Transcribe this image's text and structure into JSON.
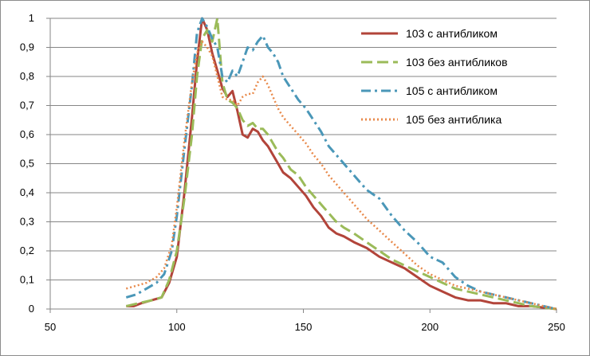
{
  "chart_data": {
    "type": "line",
    "xlim": [
      50,
      250
    ],
    "ylim": [
      0,
      1
    ],
    "x_ticks": [
      "50",
      "100",
      "150",
      "200",
      "250"
    ],
    "y_ticks": [
      "0",
      "0,1",
      "0,2",
      "0,3",
      "0,4",
      "0,5",
      "0,6",
      "0,7",
      "0,8",
      "0,9",
      "1"
    ],
    "grid": "horizontal",
    "legend_position": "top-right",
    "series": [
      {
        "name": "103 с антибликом",
        "color": "#b2443a",
        "dash": "solid",
        "points": [
          [
            80,
            0.01
          ],
          [
            83,
            0.01
          ],
          [
            86,
            0.02
          ],
          [
            90,
            0.03
          ],
          [
            94,
            0.04
          ],
          [
            97,
            0.09
          ],
          [
            100,
            0.18
          ],
          [
            103,
            0.4
          ],
          [
            106,
            0.66
          ],
          [
            108,
            0.85
          ],
          [
            110,
            1.0
          ],
          [
            112,
            0.96
          ],
          [
            114,
            0.88
          ],
          [
            116,
            0.82
          ],
          [
            118,
            0.76
          ],
          [
            120,
            0.73
          ],
          [
            122,
            0.75
          ],
          [
            124,
            0.68
          ],
          [
            126,
            0.6
          ],
          [
            128,
            0.59
          ],
          [
            130,
            0.62
          ],
          [
            132,
            0.61
          ],
          [
            134,
            0.58
          ],
          [
            136,
            0.56
          ],
          [
            138,
            0.53
          ],
          [
            140,
            0.5
          ],
          [
            142,
            0.47
          ],
          [
            145,
            0.45
          ],
          [
            148,
            0.42
          ],
          [
            151,
            0.39
          ],
          [
            154,
            0.35
          ],
          [
            157,
            0.32
          ],
          [
            160,
            0.28
          ],
          [
            163,
            0.26
          ],
          [
            166,
            0.25
          ],
          [
            170,
            0.23
          ],
          [
            175,
            0.21
          ],
          [
            180,
            0.18
          ],
          [
            185,
            0.16
          ],
          [
            190,
            0.14
          ],
          [
            195,
            0.11
          ],
          [
            200,
            0.08
          ],
          [
            205,
            0.06
          ],
          [
            210,
            0.04
          ],
          [
            215,
            0.03
          ],
          [
            220,
            0.03
          ],
          [
            225,
            0.02
          ],
          [
            230,
            0.02
          ],
          [
            235,
            0.01
          ],
          [
            240,
            0.01
          ],
          [
            245,
            0.005
          ],
          [
            250,
            0.0
          ]
        ]
      },
      {
        "name": "103 без антибликов",
        "color": "#9bbb59",
        "dash": "long-dash",
        "points": [
          [
            80,
            0.01
          ],
          [
            85,
            0.02
          ],
          [
            90,
            0.03
          ],
          [
            94,
            0.04
          ],
          [
            97,
            0.1
          ],
          [
            100,
            0.2
          ],
          [
            103,
            0.38
          ],
          [
            106,
            0.6
          ],
          [
            108,
            0.8
          ],
          [
            110,
            0.93
          ],
          [
            112,
            0.96
          ],
          [
            114,
            0.92
          ],
          [
            116,
            1.0
          ],
          [
            118,
            0.78
          ],
          [
            120,
            0.72
          ],
          [
            122,
            0.71
          ],
          [
            124,
            0.69
          ],
          [
            126,
            0.65
          ],
          [
            128,
            0.63
          ],
          [
            130,
            0.64
          ],
          [
            132,
            0.62
          ],
          [
            134,
            0.62
          ],
          [
            136,
            0.6
          ],
          [
            138,
            0.57
          ],
          [
            140,
            0.54
          ],
          [
            142,
            0.52
          ],
          [
            145,
            0.48
          ],
          [
            148,
            0.46
          ],
          [
            151,
            0.42
          ],
          [
            154,
            0.39
          ],
          [
            157,
            0.36
          ],
          [
            160,
            0.33
          ],
          [
            163,
            0.3
          ],
          [
            166,
            0.28
          ],
          [
            170,
            0.26
          ],
          [
            175,
            0.23
          ],
          [
            180,
            0.2
          ],
          [
            185,
            0.17
          ],
          [
            190,
            0.15
          ],
          [
            195,
            0.13
          ],
          [
            200,
            0.11
          ],
          [
            205,
            0.09
          ],
          [
            210,
            0.07
          ],
          [
            215,
            0.06
          ],
          [
            220,
            0.05
          ],
          [
            225,
            0.04
          ],
          [
            230,
            0.03
          ],
          [
            235,
            0.02
          ],
          [
            240,
            0.01
          ],
          [
            245,
            0.005
          ],
          [
            250,
            0.0
          ]
        ]
      },
      {
        "name": "105 с антибликом",
        "color": "#4a97b8",
        "dash": "dash-dot",
        "points": [
          [
            80,
            0.04
          ],
          [
            84,
            0.05
          ],
          [
            88,
            0.07
          ],
          [
            92,
            0.09
          ],
          [
            95,
            0.12
          ],
          [
            98,
            0.2
          ],
          [
            100,
            0.32
          ],
          [
            103,
            0.55
          ],
          [
            106,
            0.77
          ],
          [
            108,
            0.95
          ],
          [
            110,
            1.0
          ],
          [
            112,
            0.97
          ],
          [
            114,
            0.93
          ],
          [
            116,
            0.9
          ],
          [
            118,
            0.8
          ],
          [
            120,
            0.78
          ],
          [
            122,
            0.82
          ],
          [
            124,
            0.8
          ],
          [
            126,
            0.85
          ],
          [
            128,
            0.9
          ],
          [
            130,
            0.89
          ],
          [
            132,
            0.92
          ],
          [
            134,
            0.94
          ],
          [
            136,
            0.9
          ],
          [
            138,
            0.88
          ],
          [
            140,
            0.85
          ],
          [
            142,
            0.8
          ],
          [
            145,
            0.76
          ],
          [
            148,
            0.72
          ],
          [
            151,
            0.69
          ],
          [
            154,
            0.65
          ],
          [
            157,
            0.61
          ],
          [
            160,
            0.56
          ],
          [
            163,
            0.53
          ],
          [
            166,
            0.5
          ],
          [
            170,
            0.46
          ],
          [
            175,
            0.41
          ],
          [
            180,
            0.38
          ],
          [
            185,
            0.32
          ],
          [
            190,
            0.27
          ],
          [
            195,
            0.23
          ],
          [
            200,
            0.18
          ],
          [
            205,
            0.16
          ],
          [
            210,
            0.11
          ],
          [
            215,
            0.08
          ],
          [
            220,
            0.06
          ],
          [
            225,
            0.05
          ],
          [
            230,
            0.04
          ],
          [
            235,
            0.03
          ],
          [
            240,
            0.02
          ],
          [
            245,
            0.01
          ],
          [
            250,
            0.0
          ]
        ]
      },
      {
        "name": "105 без антиблика",
        "color": "#e8894a",
        "dash": "dotted",
        "points": [
          [
            80,
            0.07
          ],
          [
            84,
            0.08
          ],
          [
            88,
            0.09
          ],
          [
            92,
            0.11
          ],
          [
            95,
            0.14
          ],
          [
            98,
            0.22
          ],
          [
            100,
            0.35
          ],
          [
            103,
            0.58
          ],
          [
            106,
            0.78
          ],
          [
            108,
            0.88
          ],
          [
            110,
            0.92
          ],
          [
            112,
            0.9
          ],
          [
            114,
            0.87
          ],
          [
            116,
            0.8
          ],
          [
            118,
            0.73
          ],
          [
            120,
            0.72
          ],
          [
            122,
            0.72
          ],
          [
            124,
            0.7
          ],
          [
            126,
            0.73
          ],
          [
            128,
            0.74
          ],
          [
            130,
            0.74
          ],
          [
            132,
            0.78
          ],
          [
            134,
            0.8
          ],
          [
            136,
            0.77
          ],
          [
            138,
            0.73
          ],
          [
            140,
            0.69
          ],
          [
            142,
            0.66
          ],
          [
            145,
            0.63
          ],
          [
            148,
            0.6
          ],
          [
            151,
            0.57
          ],
          [
            154,
            0.53
          ],
          [
            157,
            0.5
          ],
          [
            160,
            0.46
          ],
          [
            163,
            0.43
          ],
          [
            166,
            0.4
          ],
          [
            170,
            0.36
          ],
          [
            175,
            0.31
          ],
          [
            180,
            0.27
          ],
          [
            185,
            0.23
          ],
          [
            190,
            0.19
          ],
          [
            195,
            0.15
          ],
          [
            200,
            0.12
          ],
          [
            205,
            0.1
          ],
          [
            210,
            0.08
          ],
          [
            215,
            0.07
          ],
          [
            220,
            0.06
          ],
          [
            225,
            0.05
          ],
          [
            230,
            0.04
          ],
          [
            235,
            0.03
          ],
          [
            240,
            0.02
          ],
          [
            245,
            0.01
          ],
          [
            250,
            0.0
          ]
        ]
      }
    ]
  }
}
